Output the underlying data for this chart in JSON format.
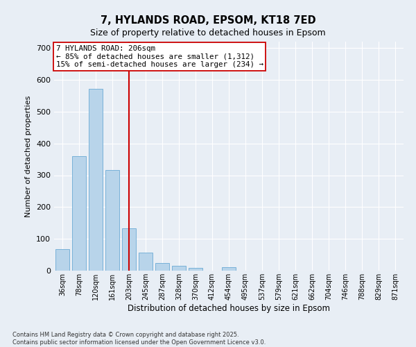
{
  "title_line1": "7, HYLANDS ROAD, EPSOM, KT18 7ED",
  "title_line2": "Size of property relative to detached houses in Epsom",
  "xlabel": "Distribution of detached houses by size in Epsom",
  "ylabel": "Number of detached properties",
  "bar_labels": [
    "36sqm",
    "78sqm",
    "120sqm",
    "161sqm",
    "203sqm",
    "245sqm",
    "287sqm",
    "328sqm",
    "370sqm",
    "412sqm",
    "454sqm",
    "495sqm",
    "537sqm",
    "579sqm",
    "621sqm",
    "662sqm",
    "704sqm",
    "746sqm",
    "788sqm",
    "829sqm",
    "871sqm"
  ],
  "bar_values": [
    68,
    360,
    572,
    316,
    133,
    57,
    25,
    15,
    8,
    0,
    10,
    0,
    0,
    0,
    0,
    0,
    0,
    0,
    0,
    0,
    0
  ],
  "bar_color": "#b8d4ea",
  "bar_edgecolor": "#6aaad4",
  "vline_x_index": 4,
  "vline_color": "#cc0000",
  "annotation_text": "7 HYLANDS ROAD: 206sqm\n← 85% of detached houses are smaller (1,312)\n15% of semi-detached houses are larger (234) →",
  "annotation_box_color": "#ffffff",
  "annotation_box_edgecolor": "#cc0000",
  "ylim": [
    0,
    720
  ],
  "yticks": [
    0,
    100,
    200,
    300,
    400,
    500,
    600,
    700
  ],
  "bg_color": "#e8eef5",
  "grid_color": "#ffffff",
  "footer_text": "Contains HM Land Registry data © Crown copyright and database right 2025.\nContains public sector information licensed under the Open Government Licence v3.0."
}
